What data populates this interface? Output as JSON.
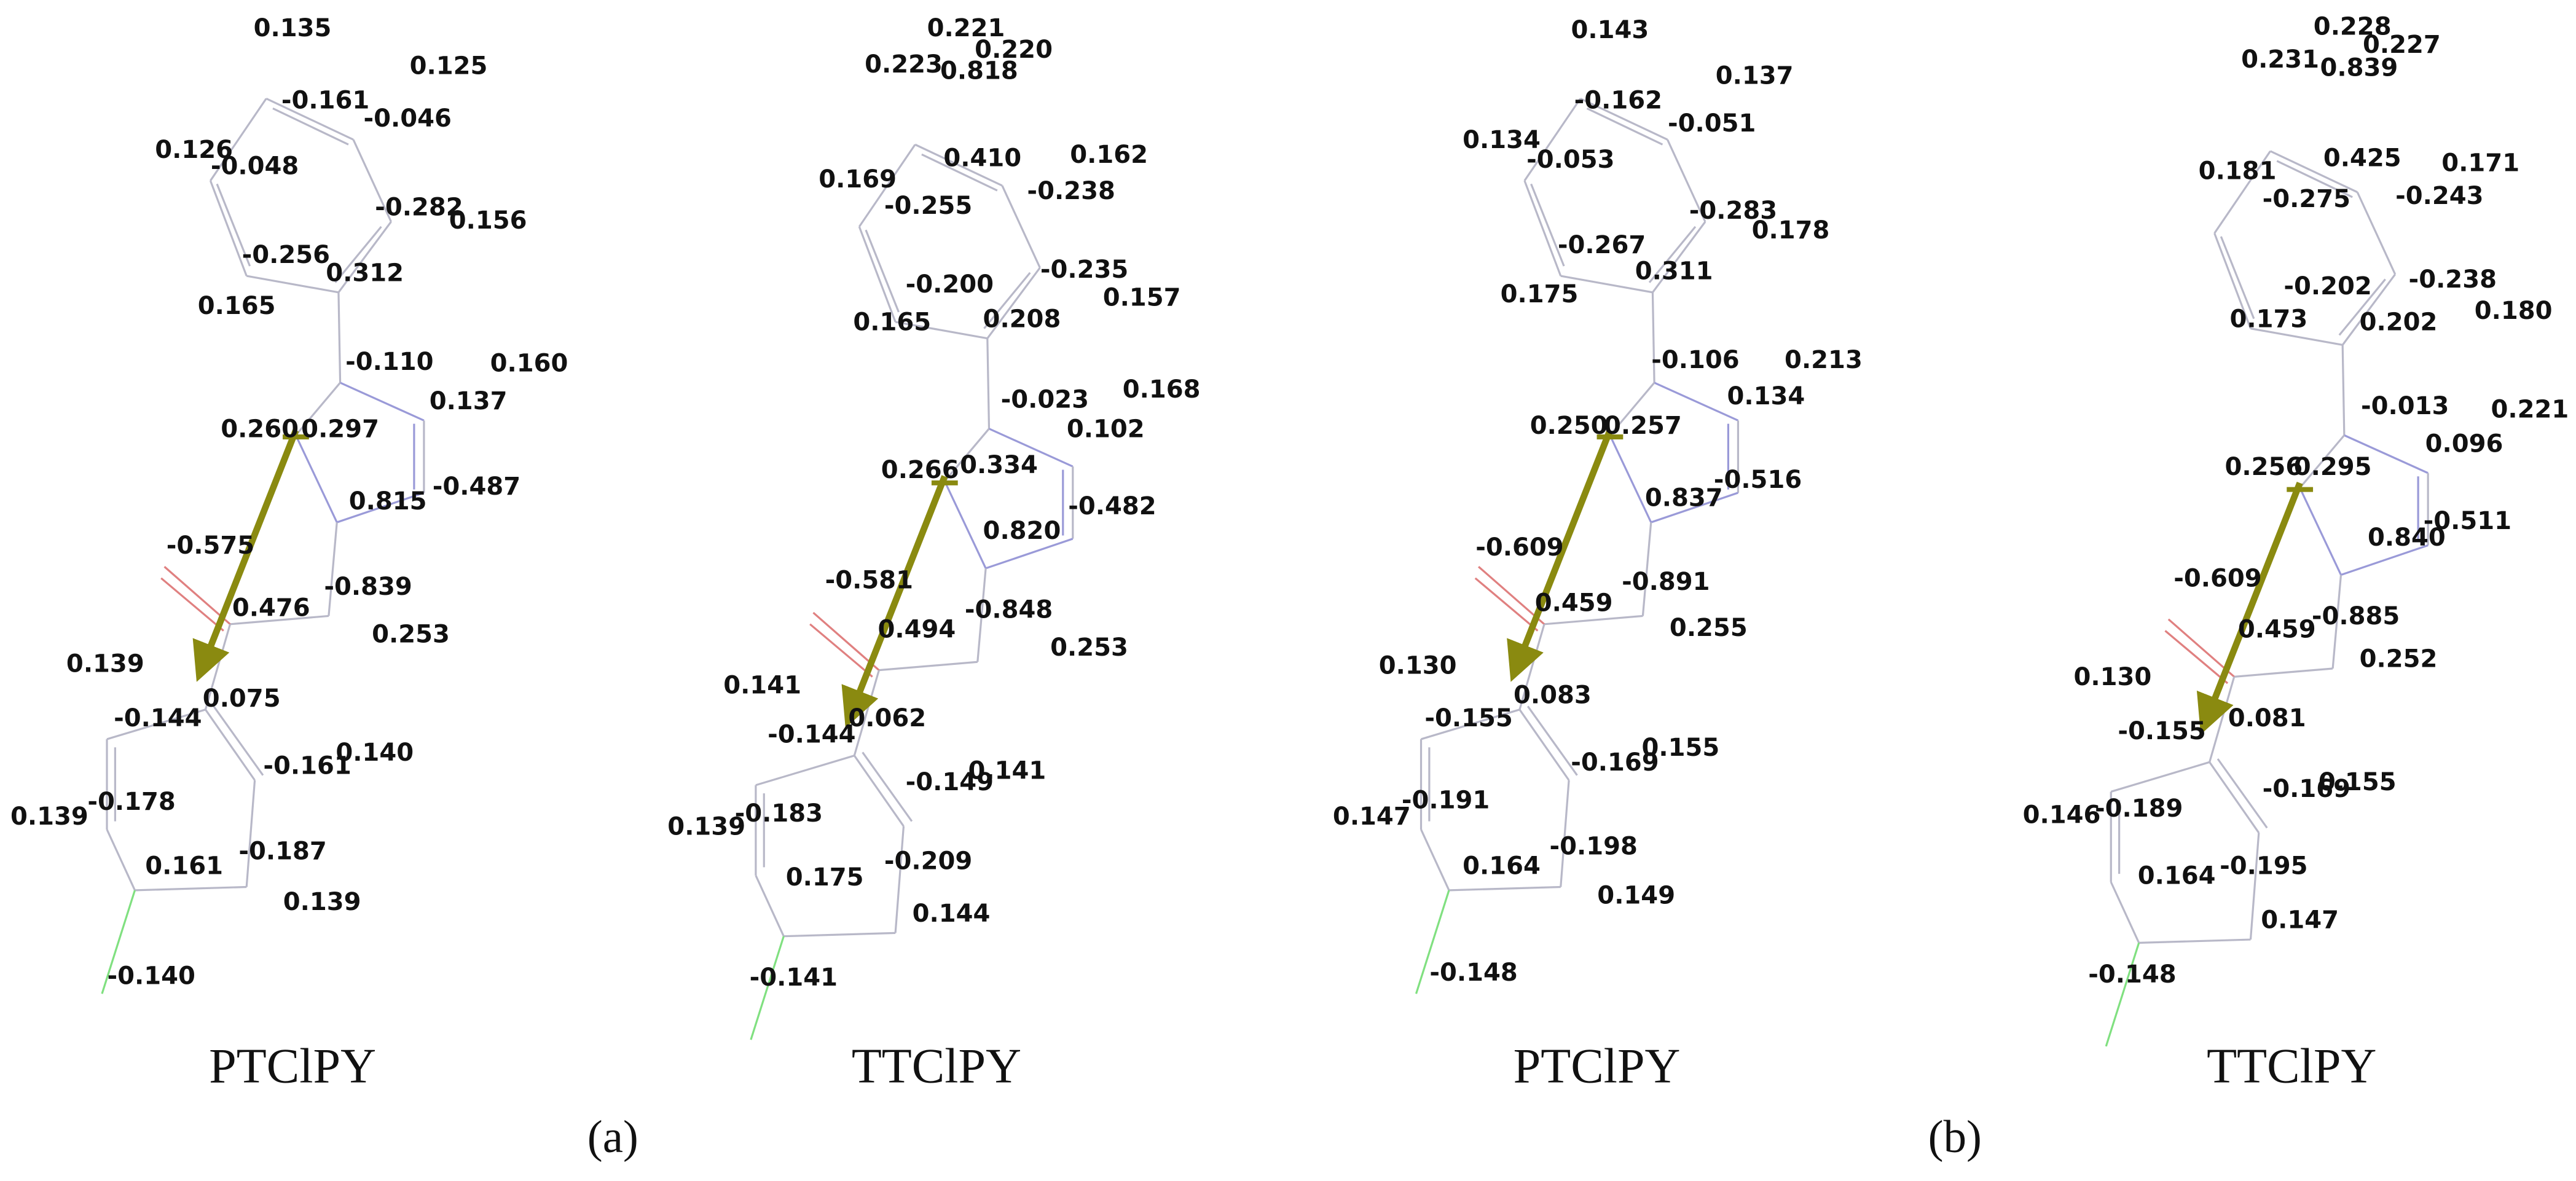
{
  "panels": [
    {
      "caption": "PTClPY",
      "labels": [
        "0.135",
        "-0.161",
        "0.125",
        "-0.046",
        "0.126",
        "-0.048",
        "-0.282",
        "0.156",
        "-0.256",
        "0.312",
        "0.165",
        "-0.110",
        "0.160",
        "0.137",
        "0.260",
        "0.297",
        "-0.487",
        "-0.575",
        "0.815",
        "-0.839",
        "0.476",
        "0.253",
        "0.139",
        "0.075",
        "-0.144",
        "0.140",
        "-0.161",
        "0.139",
        "-0.178",
        "0.161",
        "-0.187",
        "0.139",
        "-0.140"
      ]
    },
    {
      "caption": "TTClPY",
      "labels": [
        "0.221",
        "0.220",
        "0.223",
        "0.818",
        "0.410",
        "0.162",
        "0.169",
        "-0.255",
        "-0.238",
        "-0.235",
        "0.157",
        "-0.200",
        "0.208",
        "0.165",
        "-0.023",
        "0.168",
        "0.102",
        "0.266",
        "0.334",
        "-0.482",
        "0.820",
        "-0.581",
        "-0.848",
        "0.494",
        "0.253",
        "0.141",
        "0.062",
        "-0.144",
        "-0.149",
        "0.141",
        "0.139",
        "-0.183",
        "0.175",
        "-0.209",
        "0.144",
        "-0.141"
      ]
    },
    {
      "caption": "PTClPY",
      "labels": [
        "0.143",
        "-0.162",
        "0.137",
        "-0.051",
        "0.134",
        "-0.053",
        "-0.283",
        "0.178",
        "-0.267",
        "0.311",
        "0.175",
        "-0.106",
        "0.213",
        "0.134",
        "0.250",
        "0.257",
        "-0.516",
        "0.837",
        "-0.609",
        "-0.891",
        "0.459",
        "0.255",
        "0.130",
        "0.083",
        "-0.155",
        "-0.169",
        "0.155",
        "0.147",
        "-0.191",
        "0.164",
        "-0.198",
        "0.149",
        "-0.148"
      ]
    },
    {
      "caption": "TTClPY",
      "labels": [
        "0.228",
        "0.227",
        "0.231",
        "0.839",
        "0.425",
        "0.171",
        "0.181",
        "-0.275",
        "-0.243",
        "-0.238",
        "0.180",
        "-0.202",
        "0.202",
        "0.173",
        "-0.013",
        "0.221",
        "0.096",
        "0.256",
        "0.295",
        "-0.511",
        "0.840",
        "-0.609",
        "-0.885",
        "0.459",
        "0.252",
        "0.130",
        "0.081",
        "-0.155",
        "-0.169",
        "0.155",
        "0.146",
        "-0.189",
        "0.164",
        "-0.195",
        "0.147",
        "-0.148"
      ]
    }
  ],
  "subfigures": [
    "(a)",
    "(b)"
  ]
}
